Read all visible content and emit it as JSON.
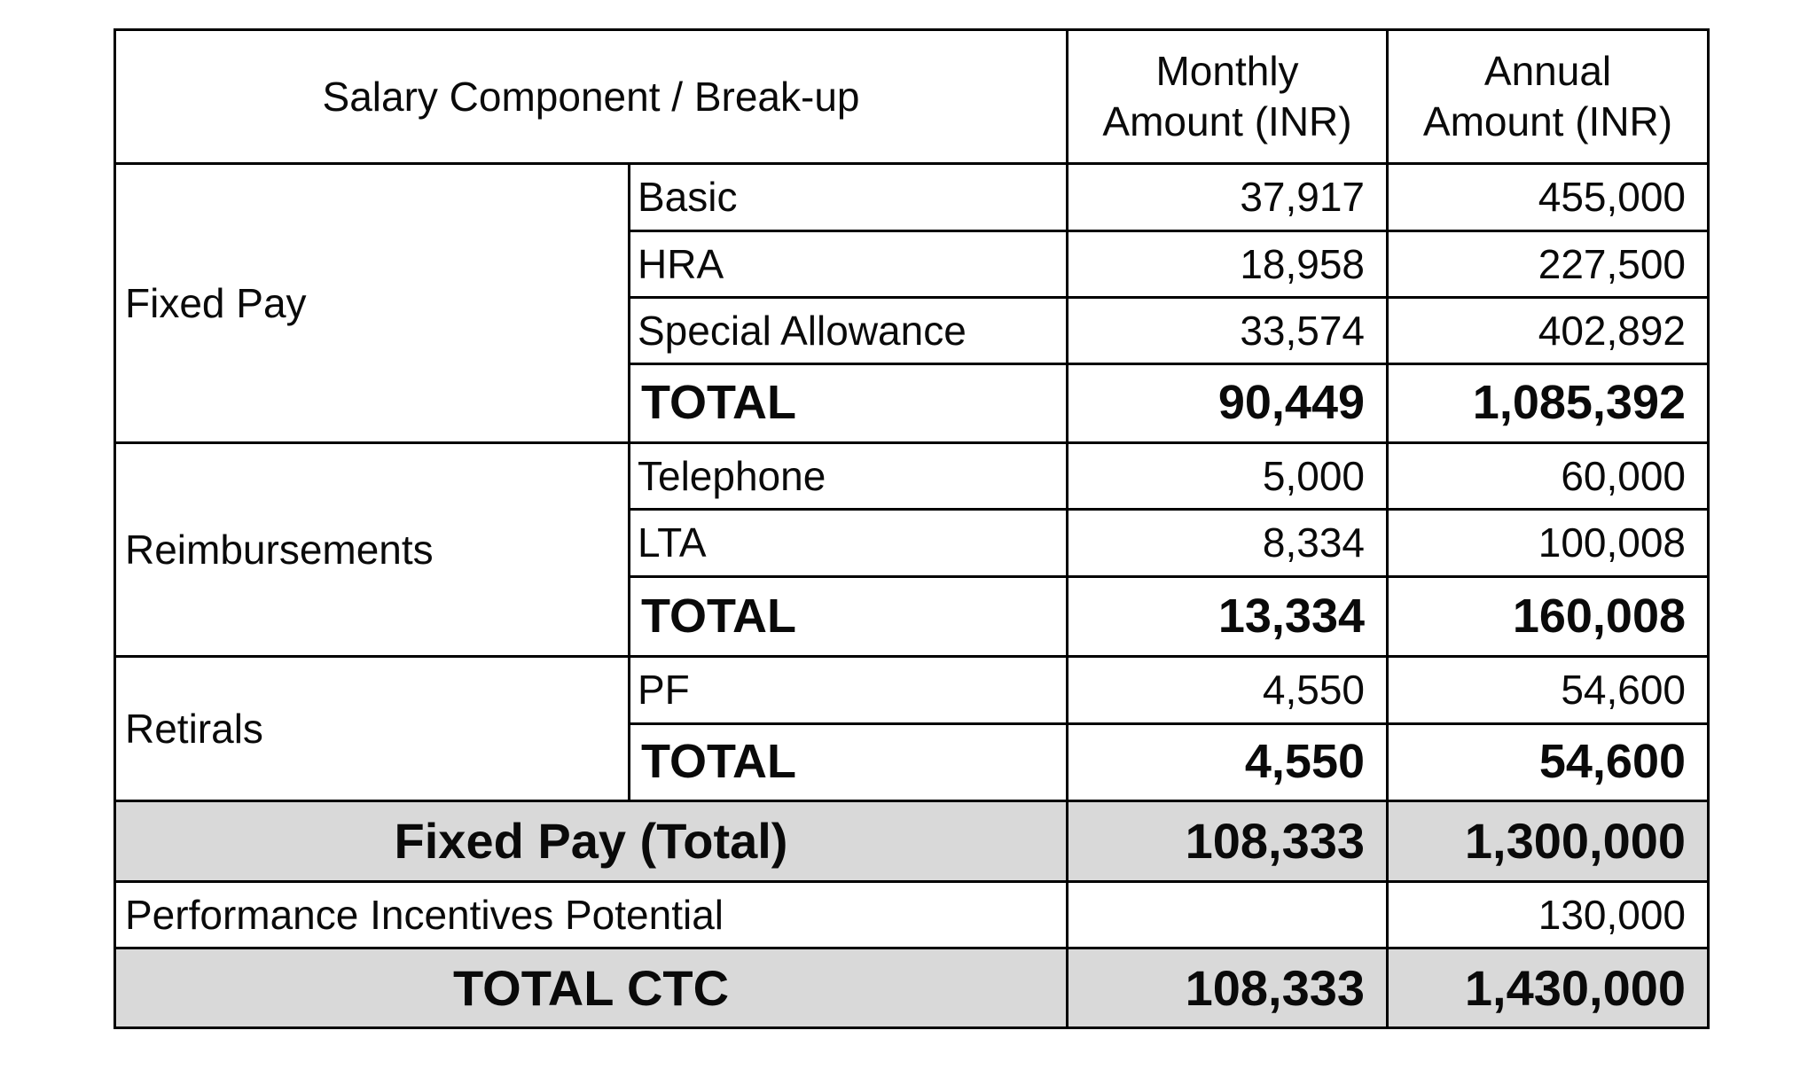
{
  "table": {
    "headers": {
      "component": "Salary Component / Break-up",
      "monthly_line1": "Monthly",
      "monthly_line2": "Amount (INR)",
      "annual_line1": "Annual",
      "annual_line2": "Amount (INR)"
    },
    "groups": [
      {
        "label": "Fixed Pay",
        "rows": [
          {
            "item": "Basic",
            "monthly": "37,917",
            "annual": "455,000",
            "bold": false
          },
          {
            "item": "HRA",
            "monthly": "18,958",
            "annual": "227,500",
            "bold": false
          },
          {
            "item": "Special Allowance",
            "monthly": "33,574",
            "annual": "402,892",
            "bold": false
          },
          {
            "item": "TOTAL",
            "monthly": "90,449",
            "annual": "1,085,392",
            "bold": true
          }
        ]
      },
      {
        "label": "Reimbursements",
        "rows": [
          {
            "item": "Telephone",
            "monthly": "5,000",
            "annual": "60,000",
            "bold": false
          },
          {
            "item": "LTA",
            "monthly": "8,334",
            "annual": "100,008",
            "bold": false
          },
          {
            "item": "TOTAL",
            "monthly": "13,334",
            "annual": "160,008",
            "bold": true
          }
        ]
      },
      {
        "label": "Retirals",
        "rows": [
          {
            "item": "PF",
            "monthly": "4,550",
            "annual": "54,600",
            "bold": false
          },
          {
            "item": "TOTAL",
            "monthly": "4,550",
            "annual": "54,600",
            "bold": true
          }
        ]
      }
    ],
    "fixed_pay_total": {
      "label": "Fixed Pay (Total)",
      "monthly": "108,333",
      "annual": "1,300,000"
    },
    "performance_incentives": {
      "label": "Performance Incentives Potential",
      "monthly": "",
      "annual": "130,000"
    },
    "total_ctc": {
      "label": "TOTAL CTC",
      "monthly": "108,333",
      "annual": "1,430,000"
    }
  },
  "colors": {
    "border": "#000000",
    "shaded_row": "#d9d9d9",
    "background": "#ffffff"
  }
}
